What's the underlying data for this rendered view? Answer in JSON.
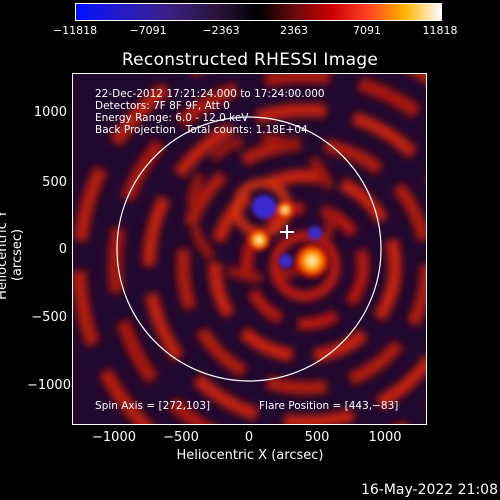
{
  "colorbar": {
    "ticks": [
      "−11818",
      "−7091",
      "−2363",
      "2363",
      "7091",
      "11818"
    ]
  },
  "title": "Reconstructed RHESSI Image",
  "info": {
    "line1": "22-Dec-2012 17:21:24.000 to 17:24:00.000",
    "line2": "Detectors: 7F 8F 9F, Att 0",
    "line3": "Energy Range: 6.0 - 12.0 keV",
    "line4": "Back Projection   Total counts: 1.18E+04",
    "spin_axis": "Spin Axis = [272,103]",
    "flare_position": "Flare Position = [443,−83]"
  },
  "axes": {
    "yticks": [
      "1000",
      "500",
      "0",
      "−500",
      "−1000"
    ],
    "xticks": [
      "−1000",
      "−500",
      "0",
      "500",
      "1000"
    ],
    "ylabel": "Heliocentric Y (arcsec)",
    "xlabel": "Heliocentric X (arcsec)"
  },
  "timestamp": "16-May-2022 21:08"
}
